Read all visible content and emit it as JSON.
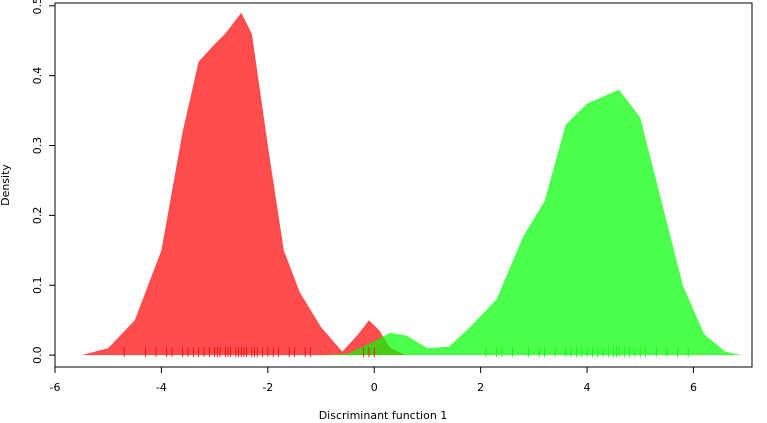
{
  "chart_data": {
    "type": "area",
    "xlabel": "Discriminant function 1",
    "ylabel": "Density",
    "xlim": [
      -6.0,
      7.1
    ],
    "ylim": [
      -0.017,
      0.504
    ],
    "xticks": [
      -6,
      -4,
      -2,
      0,
      2,
      4,
      6
    ],
    "yticks": [
      {
        "value": 0,
        "label": "0.0"
      },
      0.1,
      0.2,
      0.3,
      0.4,
      0.5
    ],
    "opacity": 0.7,
    "series": [
      {
        "color": "#ff0000",
        "x": [
          -5.5,
          -5.0,
          -4.5,
          -4.0,
          -3.6,
          -3.3,
          -3.0,
          -2.8,
          -2.5,
          -2.3,
          -2.0,
          -1.7,
          -1.4,
          -1.0,
          -0.6,
          -0.3,
          -0.1,
          0.1,
          0.3,
          0.6
        ],
        "values": [
          0.0,
          0.01,
          0.05,
          0.15,
          0.32,
          0.42,
          0.445,
          0.46,
          0.49,
          0.46,
          0.3,
          0.15,
          0.09,
          0.04,
          0.005,
          0.03,
          0.05,
          0.035,
          0.01,
          0.0
        ],
        "rug": [
          -4.7,
          -4.3,
          -4.1,
          -3.9,
          -3.8,
          -3.6,
          -3.5,
          -3.4,
          -3.3,
          -3.2,
          -3.1,
          -3.0,
          -2.95,
          -2.9,
          -2.8,
          -2.75,
          -2.7,
          -2.6,
          -2.55,
          -2.5,
          -2.45,
          -2.4,
          -2.3,
          -2.25,
          -2.2,
          -2.1,
          -2.0,
          -1.9,
          -1.8,
          -1.6,
          -1.5,
          -1.3,
          -1.2,
          -0.2,
          -0.1,
          0.0
        ]
      },
      {
        "color": "#00ff00",
        "x": [
          -1.0,
          -0.5,
          0.0,
          0.3,
          0.6,
          1.0,
          1.4,
          1.8,
          2.3,
          2.8,
          3.2,
          3.6,
          4.0,
          4.3,
          4.6,
          5.0,
          5.4,
          5.8,
          6.2,
          6.6,
          6.9
        ],
        "values": [
          0.0,
          0.002,
          0.02,
          0.032,
          0.028,
          0.01,
          0.012,
          0.04,
          0.08,
          0.17,
          0.22,
          0.33,
          0.36,
          0.37,
          0.38,
          0.34,
          0.22,
          0.1,
          0.03,
          0.005,
          0.0
        ],
        "rug": [
          2.1,
          2.3,
          2.4,
          2.6,
          2.9,
          3.1,
          3.2,
          3.4,
          3.6,
          3.7,
          3.8,
          3.9,
          4.0,
          4.1,
          4.2,
          4.3,
          4.4,
          4.5,
          4.55,
          4.6,
          4.7,
          4.8,
          4.9,
          5.0,
          5.1,
          5.3,
          5.5,
          5.7,
          5.9
        ]
      }
    ]
  }
}
